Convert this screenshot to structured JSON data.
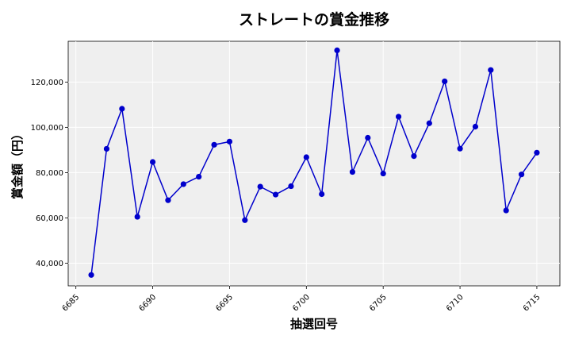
{
  "chart_data": {
    "type": "line",
    "title": "ストレートの賞金推移",
    "xlabel": "抽選回号",
    "ylabel": "賞金額（円）",
    "xlim": [
      6684.5,
      6716.5
    ],
    "ylim": [
      30000,
      138000
    ],
    "xticks": [
      6685,
      6690,
      6695,
      6700,
      6705,
      6710,
      6715
    ],
    "yticks": [
      40000,
      60000,
      80000,
      100000,
      120000
    ],
    "xtick_labels": [
      "6685",
      "6690",
      "6695",
      "6700",
      "6705",
      "6710",
      "6715"
    ],
    "ytick_labels": [
      "40,000",
      "60,000",
      "80,000",
      "100,000",
      "120,000"
    ],
    "grid": true,
    "series": [
      {
        "color": "#0000cc",
        "x": [
          6686,
          6687,
          6688,
          6689,
          6690,
          6691,
          6692,
          6693,
          6694,
          6695,
          6696,
          6697,
          6698,
          6699,
          6700,
          6701,
          6702,
          6703,
          6704,
          6705,
          6706,
          6707,
          6708,
          6709,
          6710,
          6711,
          6712,
          6713,
          6714,
          6715
        ],
        "values": [
          34800,
          90500,
          108200,
          60500,
          84700,
          67800,
          74900,
          78200,
          92300,
          93700,
          59000,
          73800,
          70300,
          74000,
          86800,
          70500,
          134000,
          80300,
          95400,
          79600,
          104700,
          87300,
          101800,
          120300,
          90600,
          100300,
          125300,
          63300,
          79200,
          88800
        ]
      }
    ]
  }
}
